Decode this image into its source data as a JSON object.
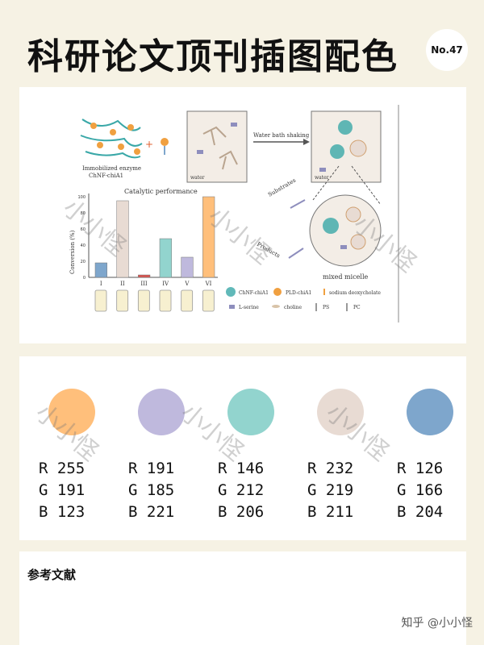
{
  "title": "科研论文顶刊插图配色",
  "badge": "No.47",
  "figure": {
    "immobilized_label_1": "Immobilized enzyme",
    "immobilized_label_2": "ChNF-chiA1",
    "water_label_1": "water",
    "water_label_2": "water",
    "arrow_label": "Water bath shaking",
    "catalytic_title": "Catalytic performance",
    "y_axis_label": "Conversion (%)",
    "y_ticks": [
      "0",
      "20",
      "40",
      "60",
      "80",
      "100"
    ],
    "categories": [
      "I",
      "II",
      "III",
      "IV",
      "V",
      "VI"
    ],
    "substrates": "Substrates",
    "products": "Products",
    "mixed_micelle": "mixed micelle",
    "legend": [
      "ChNF-chiA1",
      "PLD-chiA1",
      "sodium deoxycholate",
      "L-serine",
      "choline",
      "PS",
      "PC"
    ]
  },
  "chart_data": {
    "type": "bar",
    "title": "Catalytic performance",
    "ylabel": "Conversion (%)",
    "categories": [
      "I",
      "II",
      "III",
      "IV",
      "V",
      "VI"
    ],
    "values": [
      18,
      95,
      3,
      48,
      25,
      100
    ],
    "colors": [
      "#7ea6cc",
      "#e8dbd3",
      "#d9534f",
      "#92d4ce",
      "#bfb9dd",
      "#ffbf7b"
    ],
    "ylim": [
      0,
      100
    ]
  },
  "palette": [
    {
      "hex": "#ffbf7b",
      "r": "R 255",
      "g": "G 191",
      "b": "B 123"
    },
    {
      "hex": "#bfb9dd",
      "r": "R 191",
      "g": "G 185",
      "b": "B 221"
    },
    {
      "hex": "#92d4ce",
      "r": "R 146",
      "g": "G 212",
      "b": "B 206"
    },
    {
      "hex": "#e8dbd3",
      "r": "R 232",
      "g": "G 219",
      "b": "B 211"
    },
    {
      "hex": "#7ea6cc",
      "r": "R 126",
      "g": "G 166",
      "b": "B 204"
    }
  ],
  "references_title": "参考文献",
  "footer": "知乎 @小小怪",
  "watermark": "小小怪"
}
